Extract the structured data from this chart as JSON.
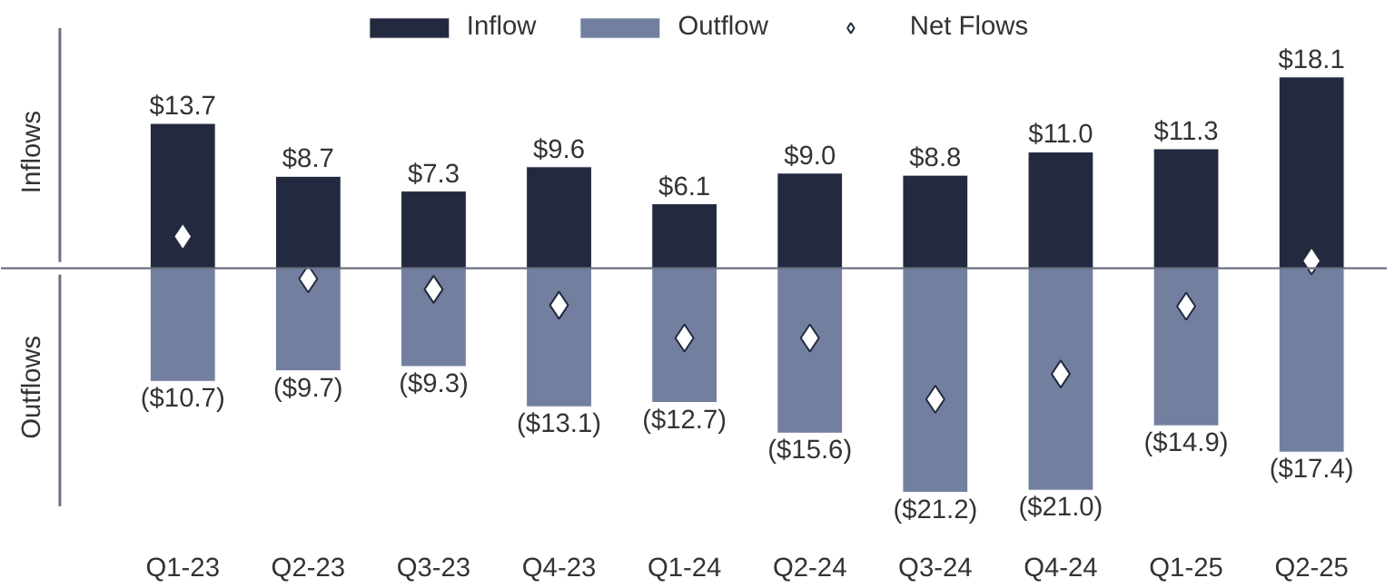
{
  "chart_data": {
    "type": "bar",
    "stacked": true,
    "categories": [
      "Q1-23",
      "Q2-23",
      "Q3-23",
      "Q4-23",
      "Q1-24",
      "Q2-24",
      "Q3-24",
      "Q4-24",
      "Q1-25",
      "Q2-25"
    ],
    "series": [
      {
        "name": "Inflow",
        "color": "#232a40",
        "values": [
          13.7,
          8.7,
          7.3,
          9.6,
          6.1,
          9.0,
          8.8,
          11.0,
          11.3,
          18.1
        ],
        "value_labels": [
          "$13.7",
          "$8.7",
          "$7.3",
          "$9.6",
          "$6.1",
          "$9.0",
          "$8.8",
          "$11.0",
          "$11.3",
          "$18.1"
        ]
      },
      {
        "name": "Outflow",
        "color": "#737f9f",
        "values": [
          -10.7,
          -9.7,
          -9.3,
          -13.1,
          -12.7,
          -15.6,
          -21.2,
          -21.0,
          -14.9,
          -17.4
        ],
        "value_labels": [
          "($10.7)",
          "($9.7)",
          "($9.3)",
          "($13.1)",
          "($12.7)",
          "($15.6)",
          "($21.2)",
          "($21.0)",
          "($14.9)",
          "($17.4)"
        ]
      },
      {
        "name": "Net Flows",
        "type": "scatter",
        "marker": "diamond",
        "color": "#ffffff",
        "values": [
          3.0,
          -1.0,
          -2.0,
          -3.5,
          -6.6,
          -6.6,
          -12.4,
          -10.0,
          -3.6,
          0.7
        ]
      }
    ],
    "annotations": [
      "Inflows",
      "Outflows"
    ],
    "ref_lines": [
      {
        "axis": "y",
        "value": 0,
        "color": "#6b7080"
      }
    ],
    "legend": "top",
    "grid": false,
    "tick_labels": "x"
  }
}
